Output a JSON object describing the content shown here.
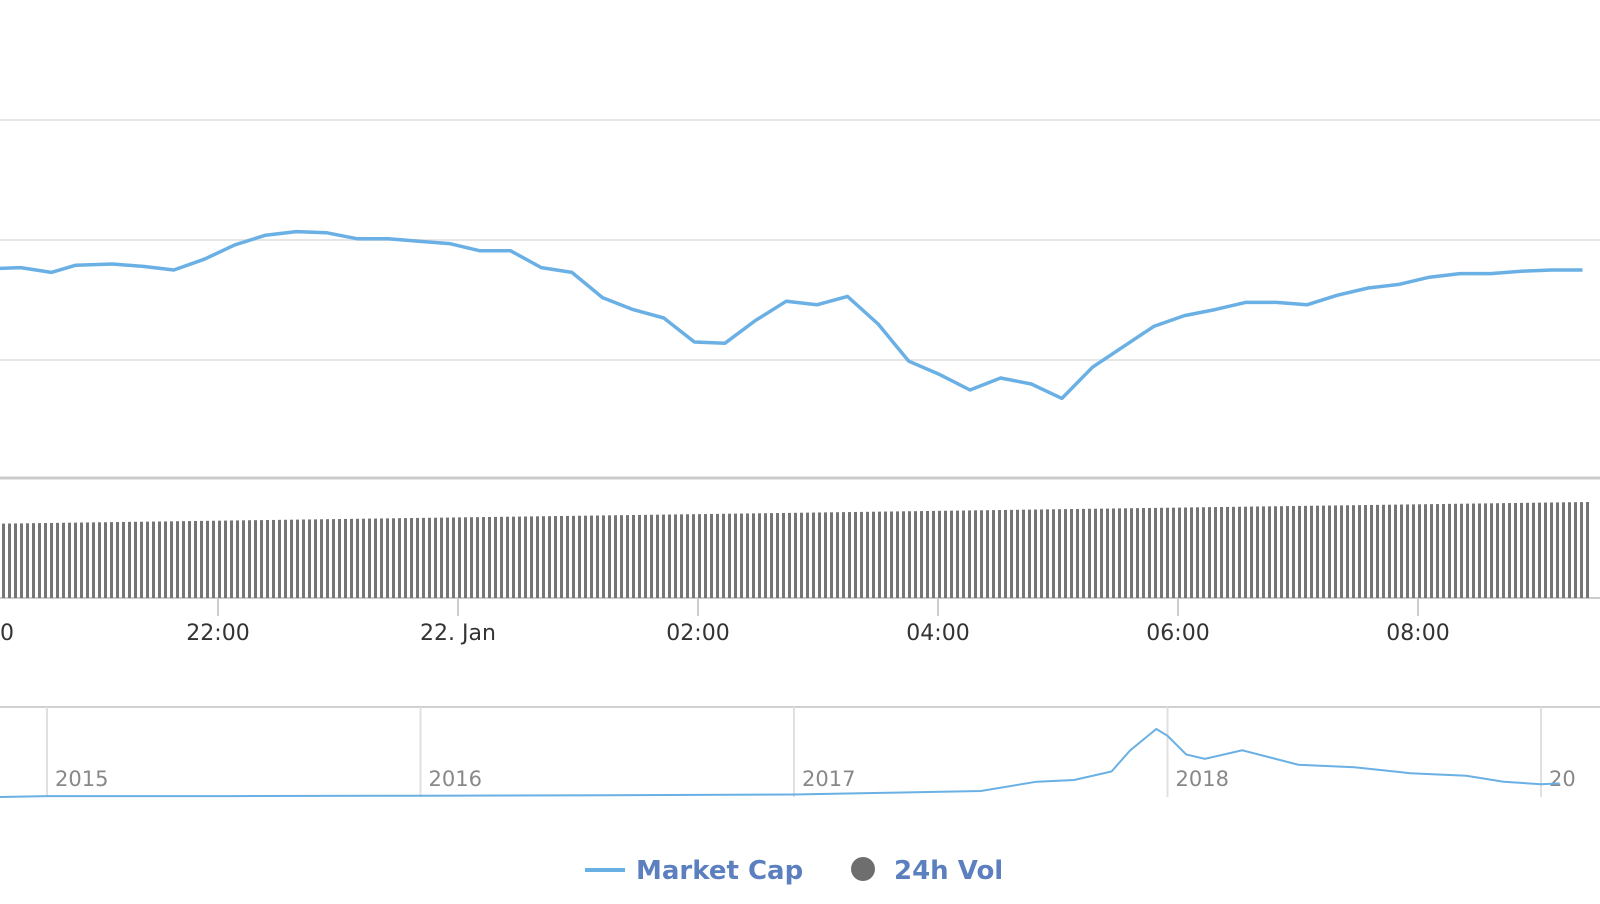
{
  "colors": {
    "line": "#6ab0e4",
    "bar": "#757575",
    "grid": "#e6e6e6",
    "legend_text": "#5b7fbf"
  },
  "chart_data": {
    "type": "line",
    "title": "",
    "xlabel": "",
    "ylabel": "",
    "y_axis_labels_visible": false,
    "grid": true,
    "x_ticks": [
      "0",
      "22:00",
      "22. Jan",
      "02:00",
      "04:00",
      "06:00",
      "08:00"
    ],
    "market_cap": {
      "name": "Market Cap",
      "x_hours": [
        0,
        0.25,
        0.5,
        0.7,
        1.0,
        1.25,
        1.5,
        1.75,
        2.0,
        2.25,
        2.5,
        2.75,
        3.0,
        3.25,
        3.5,
        3.75,
        4.0,
        4.25,
        4.5,
        4.75,
        5.0,
        5.25,
        5.5,
        5.75,
        6.0,
        6.25,
        6.5,
        6.75,
        7.0,
        7.25,
        7.5,
        7.75,
        8.0,
        8.25,
        8.5,
        8.75,
        9.0,
        9.25,
        9.5,
        9.75,
        10.0,
        10.25,
        10.5,
        10.75,
        11.0,
        11.25,
        11.5,
        11.75,
        12.0,
        12.25,
        12.5,
        12.75,
        13.0
      ],
      "values": [
        0.38,
        0.385,
        0.365,
        0.395,
        0.4,
        0.39,
        0.375,
        0.42,
        0.48,
        0.52,
        0.535,
        0.53,
        0.505,
        0.505,
        0.495,
        0.485,
        0.455,
        0.455,
        0.385,
        0.365,
        0.26,
        0.21,
        0.175,
        0.075,
        0.07,
        0.165,
        0.245,
        0.23,
        0.265,
        0.15,
        -0.005,
        -0.06,
        -0.125,
        -0.075,
        -0.1,
        -0.16,
        -0.03,
        0.055,
        0.14,
        0.185,
        0.21,
        0.24,
        0.24,
        0.23,
        0.27,
        0.3,
        0.315,
        0.345,
        0.36,
        0.36,
        0.37,
        0.375,
        0.375
      ]
    },
    "volume": {
      "name": "24h Vol",
      "x_hours_start": 0,
      "x_hours_end": 13,
      "values_start": 0.62,
      "values_end": 0.8
    },
    "navigator": {
      "ticks": [
        "2015",
        "2016",
        "2017",
        "2018",
        "20"
      ],
      "x_years": [
        2014.5,
        2015,
        2015.5,
        2016,
        2016.5,
        2017,
        2017.25,
        2017.5,
        2017.65,
        2017.75,
        2017.85,
        2017.9,
        2017.97,
        2018.0,
        2018.05,
        2018.1,
        2018.2,
        2018.35,
        2018.5,
        2018.65,
        2018.8,
        2018.9,
        2019.0,
        2019.05
      ],
      "values": [
        0.0,
        0.01,
        0.01,
        0.015,
        0.02,
        0.03,
        0.05,
        0.07,
        0.18,
        0.2,
        0.3,
        0.55,
        0.8,
        0.72,
        0.5,
        0.45,
        0.55,
        0.38,
        0.35,
        0.28,
        0.25,
        0.18,
        0.15,
        0.16
      ]
    },
    "legend": {
      "position": "bottom-center",
      "items": [
        "Market Cap",
        "24h Vol"
      ]
    }
  }
}
